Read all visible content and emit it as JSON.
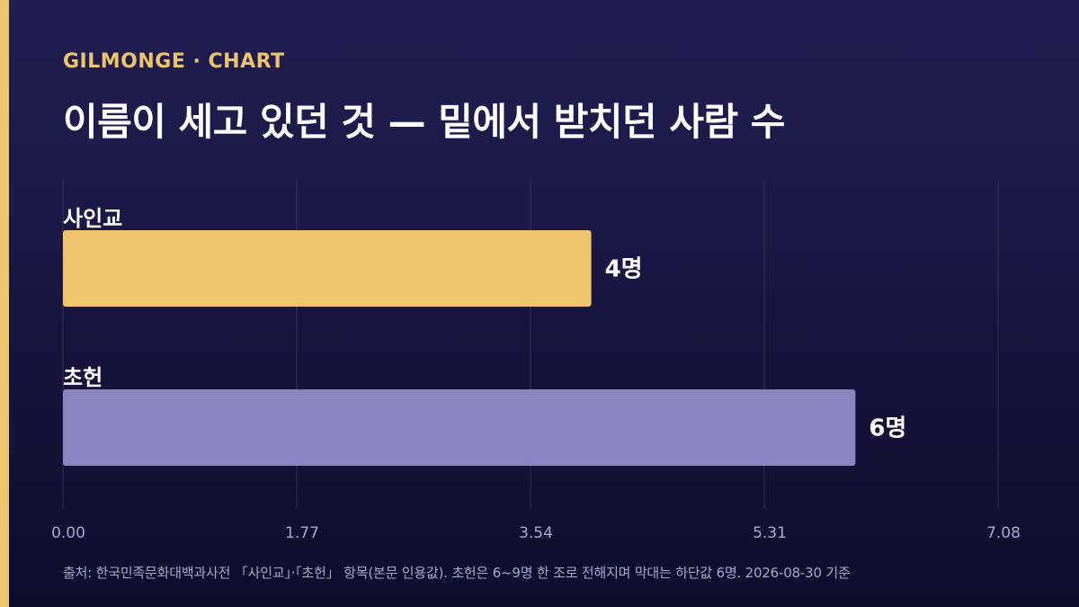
{
  "header": {
    "kicker": "GILMONGE · CHART",
    "title": "이름이 세고 있던 것 — 밑에서 받치던 사람 수"
  },
  "chart_data": {
    "type": "bar",
    "orientation": "horizontal",
    "categories": [
      "사인교",
      "초헌"
    ],
    "values": [
      4,
      6
    ],
    "value_labels": [
      "4명",
      "6명"
    ],
    "bar_colors": [
      "#efc46e",
      "#8a85c0"
    ],
    "xlim": [
      0,
      7.08
    ],
    "x_ticks": [
      0,
      1.77,
      3.54,
      5.31,
      7.08
    ],
    "x_tick_labels": [
      "0.00",
      "1.77",
      "3.54",
      "5.31",
      "7.08"
    ],
    "grid": true,
    "title": "이름이 세고 있던 것 — 밑에서 받치던 사람 수",
    "xlabel": "",
    "ylabel": ""
  },
  "footer": {
    "source": "출처: 한국민족문화대백과사전 「사인교」·「초헌」 항목(본문 인용값). 초헌은 6~9명 한 조로 전해지며 막대는 하단값 6명. 2026-08-30 기준"
  },
  "colors": {
    "accent": "#efc46e",
    "bar_secondary": "#8a85c0",
    "background": "#17153f"
  }
}
